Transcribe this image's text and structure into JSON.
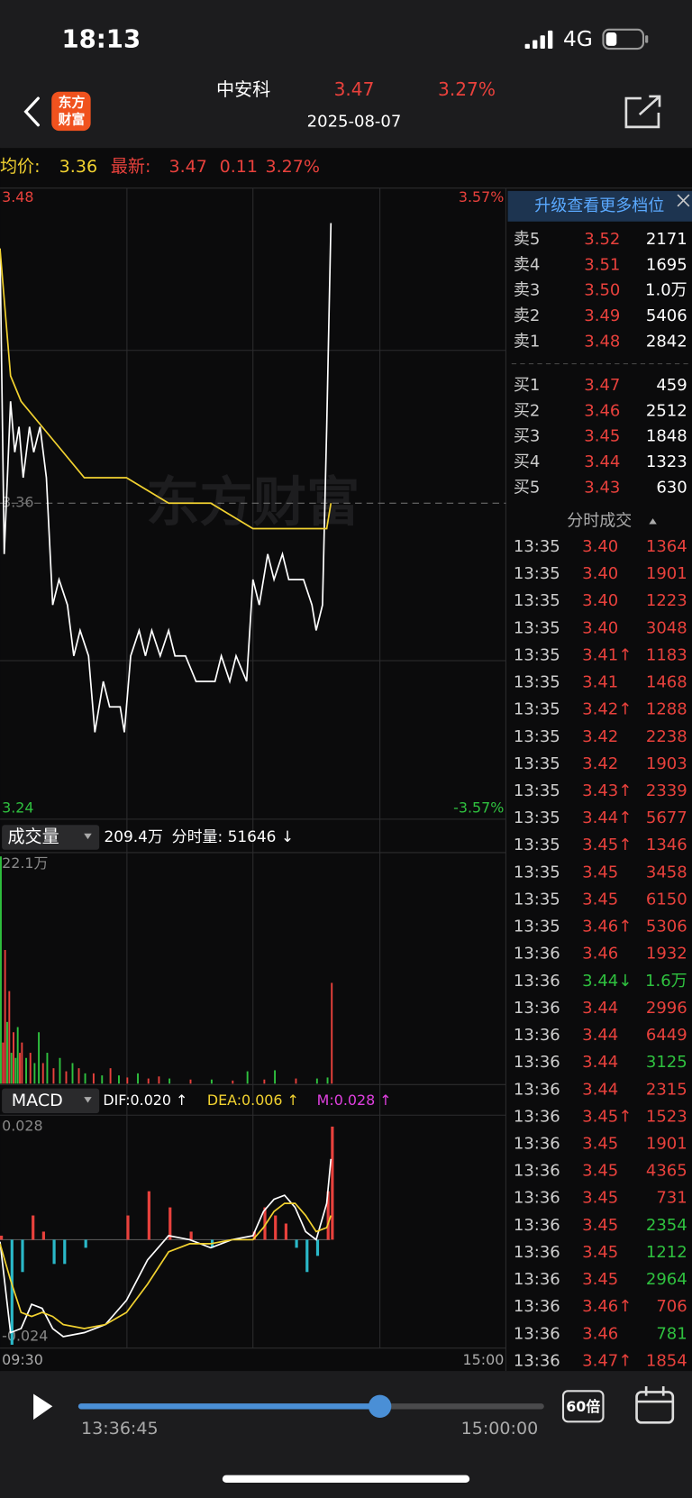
{
  "status_bar": {
    "time": "18:13",
    "network": "4G"
  },
  "header": {
    "logo": [
      "东方",
      "财富"
    ],
    "name": "中安科",
    "price": "3.47",
    "change_pct": "3.27%",
    "date": "2025-08-07"
  },
  "summary": {
    "avg_label": "均价:",
    "avg": "3.36",
    "latest_label": "最新:",
    "latest": "3.47",
    "change": "0.11",
    "change_pct": "3.27%"
  },
  "chart_data": [
    {
      "type": "line",
      "watermark": "东方财富",
      "xlim": [
        0,
        240
      ],
      "ylim": [
        3.24,
        3.48
      ],
      "yticks": [
        3.48,
        3.36,
        3.24
      ],
      "y2lim": [
        -3.57,
        3.57
      ],
      "y2ticks": [
        {
          "value": 3.57,
          "label": "3.57%"
        },
        {
          "value": -3.57,
          "label": "-3.57%"
        }
      ],
      "series": [
        {
          "color": "#ffffff",
          "x": [
            0,
            2,
            5,
            7,
            9,
            11,
            14,
            16,
            19,
            22,
            25,
            28,
            32,
            35,
            38,
            42,
            45,
            49,
            52,
            57,
            59,
            62,
            66,
            69,
            72,
            76,
            80,
            83,
            88,
            93,
            97,
            102,
            105,
            109,
            112,
            117,
            120,
            123,
            127,
            130,
            134,
            137,
            140,
            144,
            148,
            150,
            153,
            155,
            157
          ],
          "values": [
            3.46,
            3.34,
            3.4,
            3.38,
            3.39,
            3.37,
            3.39,
            3.38,
            3.39,
            3.37,
            3.32,
            3.33,
            3.32,
            3.3,
            3.31,
            3.3,
            3.27,
            3.29,
            3.28,
            3.28,
            3.27,
            3.3,
            3.31,
            3.3,
            3.31,
            3.3,
            3.31,
            3.3,
            3.3,
            3.29,
            3.29,
            3.29,
            3.3,
            3.29,
            3.3,
            3.29,
            3.33,
            3.32,
            3.34,
            3.33,
            3.34,
            3.33,
            3.33,
            3.33,
            3.32,
            3.31,
            3.32,
            3.39,
            3.47
          ]
        },
        {
          "color": "#f2d230",
          "x": [
            0,
            5,
            10,
            20,
            30,
            40,
            60,
            80,
            100,
            120,
            140,
            150,
            155,
            157
          ],
          "values": [
            3.46,
            3.41,
            3.4,
            3.39,
            3.38,
            3.37,
            3.37,
            3.36,
            3.36,
            3.35,
            3.35,
            3.35,
            3.35,
            3.36
          ]
        }
      ]
    },
    {
      "type": "bar",
      "title": "成交量",
      "total": "209.4万",
      "current": "分时量: 51646 ↓",
      "xlim": [
        0,
        240
      ],
      "ylim": [
        0,
        22.1
      ],
      "yticks": [
        {
          "value": 22.1,
          "label": "22.1万"
        }
      ],
      "x": [
        0,
        1,
        2,
        3,
        4,
        5,
        6,
        7,
        8,
        9,
        10,
        12,
        14,
        16,
        18,
        20,
        22,
        25,
        28,
        31,
        34,
        37,
        40,
        44,
        48,
        52,
        56,
        60,
        65,
        70,
        75,
        80,
        90,
        100,
        110,
        117,
        125,
        130,
        140,
        150,
        155,
        157
      ],
      "values": [
        22.1,
        4,
        13,
        6,
        9,
        3,
        5,
        2.5,
        5.5,
        3,
        4,
        2.5,
        3,
        2,
        5,
        2,
        3,
        1.5,
        2.5,
        1.2,
        2,
        1.5,
        1,
        1,
        0.8,
        1.5,
        0.8,
        0.6,
        1,
        0.5,
        0.7,
        0.5,
        0.4,
        0.4,
        0.3,
        1.2,
        0.4,
        1.3,
        0.5,
        0.5,
        0.6,
        9.8
      ],
      "colors": [
        "#2fc13f",
        "#e8413c",
        "#e8413c",
        "#2fc13f",
        "#e8413c",
        "#2fc13f",
        "#e8413c",
        "#2fc13f",
        "#2fc13f",
        "#e8413c",
        "#e8413c",
        "#2fc13f",
        "#e8413c",
        "#2fc13f",
        "#2fc13f",
        "#e8413c",
        "#2fc13f",
        "#e8413c",
        "#2fc13f",
        "#e8413c",
        "#2fc13f",
        "#e8413c",
        "#2fc13f",
        "#e8413c",
        "#2fc13f",
        "#e8413c",
        "#2fc13f",
        "#e8413c",
        "#2fc13f",
        "#e8413c",
        "#e8413c",
        "#2fc13f",
        "#e8413c",
        "#2fc13f",
        "#e8413c",
        "#2fc13f",
        "#e8413c",
        "#2fc13f",
        "#e8413c",
        "#2fc13f",
        "#2fc13f",
        "#e8413c"
      ]
    },
    {
      "type": "macd",
      "title": "MACD",
      "dif_label": "DIF:0.020 ↑",
      "dea_label": "DEA:0.006 ↑",
      "m_label": "M:0.028 ↑",
      "xlim": [
        0,
        240
      ],
      "ylim": [
        -0.024,
        0.028
      ],
      "yticks": [
        0.028,
        -0.024
      ],
      "xticks": [
        {
          "value": 0,
          "label": "09:30"
        },
        {
          "value": 240,
          "label": "15:00"
        }
      ],
      "dif_color": "#ffffff",
      "dea_color": "#f2d230",
      "up_color": "#e8413c",
      "down_color": "#2ab8c8",
      "x": [
        0,
        5,
        10,
        15,
        20,
        25,
        30,
        40,
        50,
        60,
        70,
        80,
        90,
        100,
        110,
        120,
        125,
        130,
        135,
        140,
        145,
        150,
        155,
        157
      ],
      "dif": [
        -0.0005,
        -0.023,
        -0.022,
        -0.016,
        -0.017,
        -0.022,
        -0.024,
        -0.023,
        -0.021,
        -0.015,
        -0.005,
        0.001,
        0.0,
        -0.002,
        0.0,
        0.001,
        0.007,
        0.01,
        0.011,
        0.008,
        0.002,
        0.0,
        0.009,
        0.02
      ],
      "dea": [
        -0.001,
        -0.01,
        -0.018,
        -0.019,
        -0.018,
        -0.019,
        -0.021,
        -0.022,
        -0.021,
        -0.018,
        -0.011,
        -0.003,
        -0.001,
        -0.001,
        0.0,
        0.0,
        0.003,
        0.007,
        0.009,
        0.009,
        0.006,
        0.002,
        0.003,
        0.006
      ],
      "m": [
        0.001,
        -0.026,
        -0.008,
        0.006,
        0.002,
        -0.006,
        -0.006,
        -0.002,
        0.0,
        0.006,
        0.012,
        0.008,
        0.002,
        -0.002,
        0.0,
        0.002,
        0.008,
        0.006,
        0.004,
        -0.002,
        -0.008,
        -0.004,
        0.012,
        0.028
      ]
    }
  ],
  "order_book": {
    "banner": "升级查看更多档位",
    "asks": [
      [
        "卖5",
        "3.52",
        "2171"
      ],
      [
        "卖4",
        "3.51",
        "1695"
      ],
      [
        "卖3",
        "3.50",
        "1.0万"
      ],
      [
        "卖2",
        "3.49",
        "5406"
      ],
      [
        "卖1",
        "3.48",
        "2842"
      ]
    ],
    "bids": [
      [
        "买1",
        "3.47",
        "459"
      ],
      [
        "买2",
        "3.46",
        "2512"
      ],
      [
        "买3",
        "3.45",
        "1848"
      ],
      [
        "买4",
        "3.44",
        "1323"
      ],
      [
        "买5",
        "3.43",
        "630"
      ]
    ]
  },
  "trades": {
    "title": "分时成交",
    "rows": [
      [
        "13:35",
        "3.40",
        "1364",
        "#e8413c",
        "#e8413c"
      ],
      [
        "13:35",
        "3.40",
        "1901",
        "#e8413c",
        "#e8413c"
      ],
      [
        "13:35",
        "3.40",
        "1223",
        "#e8413c",
        "#e8413c"
      ],
      [
        "13:35",
        "3.40",
        "3048",
        "#e8413c",
        "#e8413c"
      ],
      [
        "13:35",
        "3.41↑",
        "1183",
        "#e8413c",
        "#e8413c"
      ],
      [
        "13:35",
        "3.41",
        "1468",
        "#e8413c",
        "#e8413c"
      ],
      [
        "13:35",
        "3.42↑",
        "1288",
        "#e8413c",
        "#e8413c"
      ],
      [
        "13:35",
        "3.42",
        "2238",
        "#e8413c",
        "#e8413c"
      ],
      [
        "13:35",
        "3.42",
        "1903",
        "#e8413c",
        "#e8413c"
      ],
      [
        "13:35",
        "3.43↑",
        "2339",
        "#e8413c",
        "#e8413c"
      ],
      [
        "13:35",
        "3.44↑",
        "5677",
        "#e8413c",
        "#e8413c"
      ],
      [
        "13:35",
        "3.45↑",
        "1346",
        "#e8413c",
        "#e8413c"
      ],
      [
        "13:35",
        "3.45",
        "3458",
        "#e8413c",
        "#e8413c"
      ],
      [
        "13:35",
        "3.45",
        "6150",
        "#e8413c",
        "#e8413c"
      ],
      [
        "13:35",
        "3.46↑",
        "5306",
        "#e8413c",
        "#e8413c"
      ],
      [
        "13:36",
        "3.46",
        "1932",
        "#e8413c",
        "#e8413c"
      ],
      [
        "13:36",
        "3.44↓",
        "1.6万",
        "#2fc13f",
        "#2fc13f"
      ],
      [
        "13:36",
        "3.44",
        "2996",
        "#e8413c",
        "#e8413c"
      ],
      [
        "13:36",
        "3.44",
        "6449",
        "#e8413c",
        "#e8413c"
      ],
      [
        "13:36",
        "3.44",
        "3125",
        "#e8413c",
        "#2fc13f"
      ],
      [
        "13:36",
        "3.44",
        "2315",
        "#e8413c",
        "#e8413c"
      ],
      [
        "13:36",
        "3.45↑",
        "1523",
        "#e8413c",
        "#e8413c"
      ],
      [
        "13:36",
        "3.45",
        "1901",
        "#e8413c",
        "#e8413c"
      ],
      [
        "13:36",
        "3.45",
        "4365",
        "#e8413c",
        "#e8413c"
      ],
      [
        "13:36",
        "3.45",
        "731",
        "#e8413c",
        "#e8413c"
      ],
      [
        "13:36",
        "3.45",
        "2354",
        "#e8413c",
        "#2fc13f"
      ],
      [
        "13:36",
        "3.45",
        "1212",
        "#e8413c",
        "#2fc13f"
      ],
      [
        "13:36",
        "3.45",
        "2964",
        "#e8413c",
        "#2fc13f"
      ],
      [
        "13:36",
        "3.46↑",
        "706",
        "#e8413c",
        "#e8413c"
      ],
      [
        "13:36",
        "3.46",
        "781",
        "#e8413c",
        "#2fc13f"
      ],
      [
        "13:36",
        "3.47↑",
        "1854",
        "#e8413c",
        "#e8413c"
      ]
    ]
  },
  "player": {
    "elapsed": "13:36:45",
    "end": "15:00:00",
    "speed": "60倍"
  }
}
